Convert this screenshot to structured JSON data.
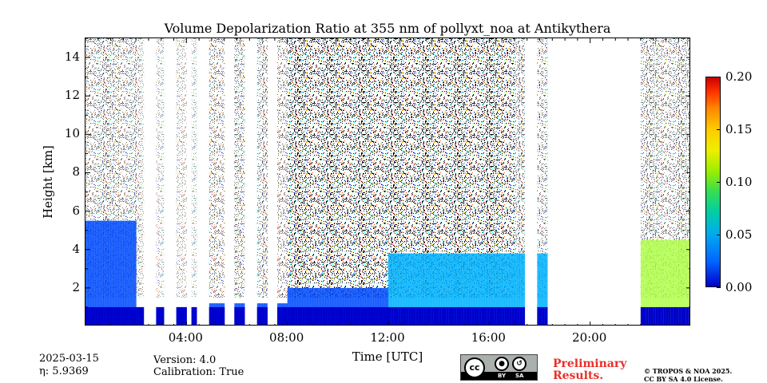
{
  "chart_data": {
    "type": "heatmap",
    "title": "Volume Depolarization Ratio at 355 nm of pollyxt_noa at Antikythera",
    "xlabel": "Time [UTC]",
    "ylabel": "Height [km]",
    "x_unit": "hours UTC",
    "xlim": [
      0,
      24
    ],
    "ylim": [
      0,
      15
    ],
    "x_ticks": [
      {
        "value": 4,
        "label": "04:00"
      },
      {
        "value": 8,
        "label": "08:00"
      },
      {
        "value": 12,
        "label": "12:00"
      },
      {
        "value": 16,
        "label": "16:00"
      },
      {
        "value": 20,
        "label": "20:00"
      }
    ],
    "y_ticks": [
      {
        "value": 2,
        "label": "2"
      },
      {
        "value": 4,
        "label": "4"
      },
      {
        "value": 6,
        "label": "6"
      },
      {
        "value": 8,
        "label": "8"
      },
      {
        "value": 10,
        "label": "10"
      },
      {
        "value": 12,
        "label": "12"
      },
      {
        "value": 14,
        "label": "14"
      }
    ],
    "colorbar": {
      "range": [
        0.0,
        0.2
      ],
      "ticks": [
        "0.00",
        "0.05",
        "0.10",
        "0.15",
        "0.20"
      ],
      "colormap": "jet"
    },
    "data_gaps_hours": [
      [
        2.3,
        2.85
      ],
      [
        3.15,
        3.6
      ],
      [
        4.05,
        4.25
      ],
      [
        4.4,
        4.9
      ],
      [
        5.5,
        5.85
      ],
      [
        6.25,
        6.75
      ],
      [
        7.15,
        7.6
      ],
      [
        17.35,
        17.9
      ],
      [
        18.3,
        18.85
      ],
      [
        18.9,
        22.0
      ]
    ],
    "sparse_columns_hours": [
      [
        2.05,
        2.3
      ],
      [
        2.85,
        3.15
      ],
      [
        3.6,
        4.05
      ],
      [
        4.25,
        4.4
      ]
    ],
    "layers": [
      {
        "name": "near-surface layer",
        "start": 0,
        "end": 24,
        "top_km": 1.2,
        "depol": 0.04
      },
      {
        "name": "boundary layer aerosol",
        "start": 12,
        "end": 18.3,
        "top_km": 3.8,
        "depol": 0.06
      },
      {
        "name": "dust layer",
        "start": 22.0,
        "end": 24,
        "top_km": 4.5,
        "depol": 0.11
      }
    ],
    "noise_top_km": 15
  },
  "metadata": {
    "date": "2025-03-15",
    "eta_label": "η: 5.9369",
    "version": "Version: 4.0",
    "calibration": "Calibration: True"
  },
  "license": {
    "badge_cc": "cc",
    "badge_by": "BY",
    "badge_sa": "SA",
    "preliminary_1": "Preliminary",
    "preliminary_2": "Results.",
    "copyright_1": "© TROPOS & NOA 2025.",
    "copyright_2": "CC BY SA 4.0 License."
  }
}
